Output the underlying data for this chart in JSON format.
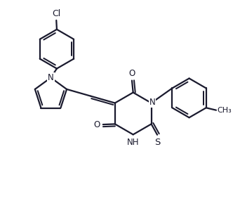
{
  "background_color": "#ffffff",
  "line_color": "#1a1a2e",
  "line_width": 1.6,
  "font_size": 8.5,
  "fig_width": 3.42,
  "fig_height": 2.93,
  "dpi": 100,
  "xlim": [
    0,
    10
  ],
  "ylim": [
    0,
    8.58
  ]
}
